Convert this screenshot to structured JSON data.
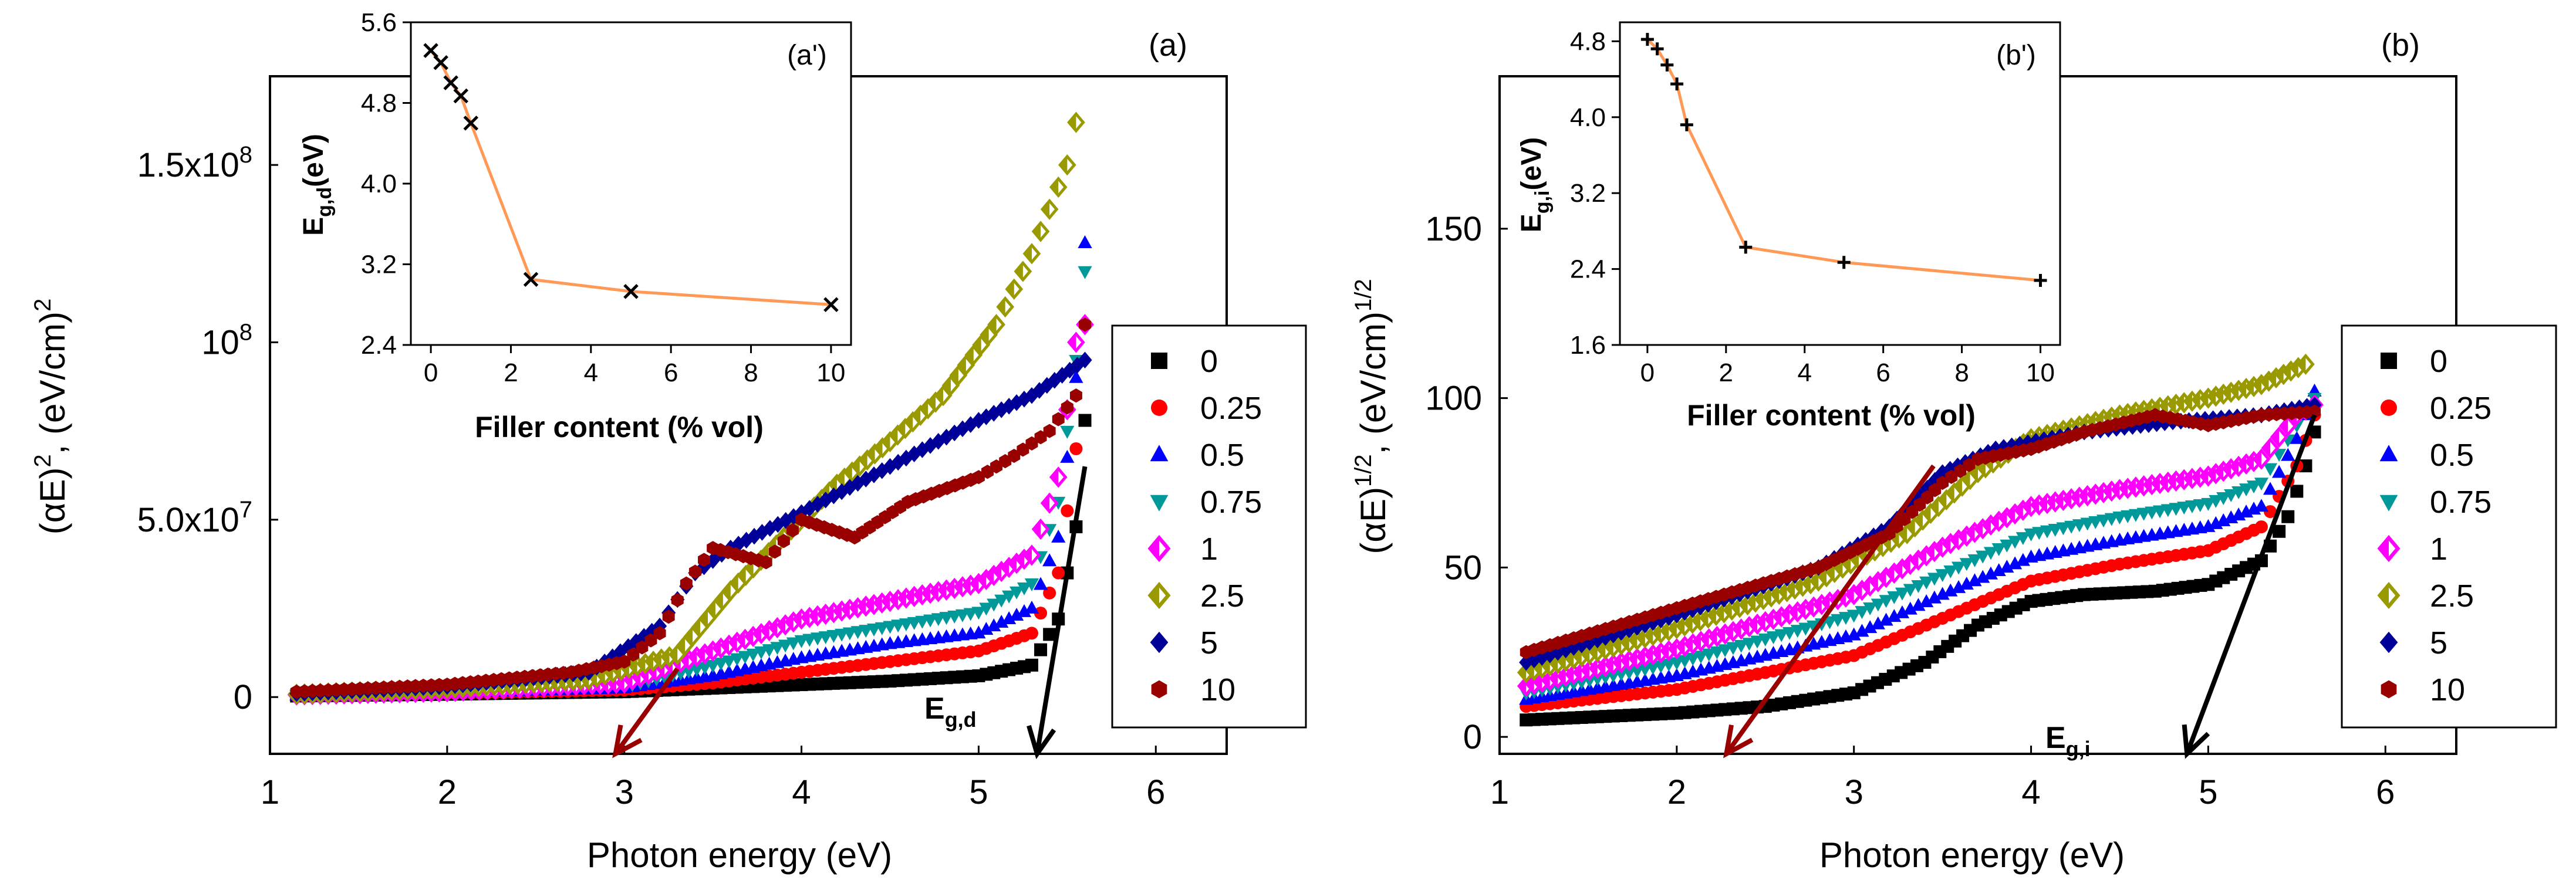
{
  "chart_data": [
    {
      "type": "scatter",
      "panel_label": "(a)",
      "xlabel": "Photon energy (eV)",
      "ylabel": {
        "prefix": "(αE)",
        "sup1": "2",
        "mid": ", (eV/cm)",
        "sup2": "2"
      },
      "xlim": [
        1,
        6.4
      ],
      "ylim": [
        -16000000.0,
        175000000.0
      ],
      "xticks": [
        1,
        2,
        3,
        4,
        5,
        6
      ],
      "xtick_labels": [
        "1",
        "2",
        "3",
        "4",
        "5",
        "6"
      ],
      "yticks": [
        0,
        50000000,
        100000000,
        150000000
      ],
      "ytick_labels": [
        {
          "base": "0",
          "sup": ""
        },
        {
          "base": "5.0x10",
          "sup": "7"
        },
        {
          "base": "10",
          "sup": "8"
        },
        {
          "base": "1.5x10",
          "sup": "8"
        }
      ],
      "annotation": {
        "base": "E",
        "sub": "g,d"
      },
      "series": [
        {
          "name": "0",
          "color": "#000000",
          "marker": "square",
          "points": [
            [
              1.15,
              300000.0
            ],
            [
              2,
              800000.0
            ],
            [
              3,
              1500000.0
            ],
            [
              3.5,
              2500000.0
            ],
            [
              4,
              3500000.0
            ],
            [
              4.5,
              4500000.0
            ],
            [
              5,
              6000000.0
            ],
            [
              5.3,
              9000000.0
            ],
            [
              5.45,
              22000000.0
            ],
            [
              5.55,
              48000000.0
            ],
            [
              5.6,
              78000000.0
            ]
          ]
        },
        {
          "name": "0.25",
          "color": "#ff0000",
          "marker": "circle",
          "points": [
            [
              1.15,
              400000.0
            ],
            [
              2,
              1000000.0
            ],
            [
              3,
              2000000.0
            ],
            [
              3.5,
              4000000.0
            ],
            [
              4,
              7000000.0
            ],
            [
              4.5,
              10000000.0
            ],
            [
              5,
              13000000.0
            ],
            [
              5.3,
              18000000.0
            ],
            [
              5.45,
              35000000.0
            ],
            [
              5.55,
              70000000.0
            ],
            [
              5.6,
              105000000.0
            ]
          ]
        },
        {
          "name": "0.5",
          "color": "#0000ff",
          "marker": "tri-up",
          "points": [
            [
              1.15,
              500000.0
            ],
            [
              2,
              1200000.0
            ],
            [
              3,
              2500000.0
            ],
            [
              3.5,
              6000000.0
            ],
            [
              4,
              11000000.0
            ],
            [
              4.5,
              15000000.0
            ],
            [
              5,
              18000000.0
            ],
            [
              5.3,
              25000000.0
            ],
            [
              5.45,
              45000000.0
            ],
            [
              5.55,
              90000000.0
            ],
            [
              5.6,
              128000000.0
            ]
          ]
        },
        {
          "name": "0.75",
          "color": "#009999",
          "marker": "tri-down",
          "points": [
            [
              1.15,
              500000.0
            ],
            [
              2,
              1300000.0
            ],
            [
              3,
              3000000.0
            ],
            [
              3.5,
              9000000.0
            ],
            [
              4,
              16000000.0
            ],
            [
              4.5,
              20000000.0
            ],
            [
              5,
              24000000.0
            ],
            [
              5.3,
              32000000.0
            ],
            [
              5.45,
              55000000.0
            ],
            [
              5.55,
              95000000.0
            ],
            [
              5.6,
              120000000.0
            ]
          ]
        },
        {
          "name": "1",
          "color": "#ff00ff",
          "marker": "diamond-half",
          "points": [
            [
              1.15,
              600000.0
            ],
            [
              2,
              1500000.0
            ],
            [
              3,
              4000000.0
            ],
            [
              3.5,
              13000000.0
            ],
            [
              4,
              22000000.0
            ],
            [
              4.5,
              27000000.0
            ],
            [
              5,
              32000000.0
            ],
            [
              5.3,
              40000000.0
            ],
            [
              5.45,
              62000000.0
            ],
            [
              5.55,
              100000000.0
            ],
            [
              5.6,
              105000000.0
            ]
          ]
        },
        {
          "name": "2.5",
          "color": "#999900",
          "marker": "diamond-half",
          "points": [
            [
              1.15,
              800000.0
            ],
            [
              2,
              2500000.0
            ],
            [
              2.8,
              5000000.0
            ],
            [
              3.3,
              12000000.0
            ],
            [
              3.6,
              30000000.0
            ],
            [
              3.9,
              45000000.0
            ],
            [
              4.2,
              60000000.0
            ],
            [
              4.5,
              72000000.0
            ],
            [
              4.8,
              85000000.0
            ],
            [
              5.1,
              105000000.0
            ],
            [
              5.3,
              125000000.0
            ],
            [
              5.5,
              150000000.0
            ],
            [
              5.55,
              162000000.0
            ]
          ]
        },
        {
          "name": "5",
          "color": "#000099",
          "marker": "diamond",
          "points": [
            [
              1.15,
              1000000.0
            ],
            [
              2,
              3000000.0
            ],
            [
              2.8,
              7000000.0
            ],
            [
              3.2,
              20000000.0
            ],
            [
              3.4,
              35000000.0
            ],
            [
              3.6,
              42000000.0
            ],
            [
              4,
              52000000.0
            ],
            [
              4.5,
              65000000.0
            ],
            [
              5,
              78000000.0
            ],
            [
              5.3,
              85000000.0
            ],
            [
              5.6,
              95000000.0
            ]
          ]
        },
        {
          "name": "10",
          "color": "#990000",
          "marker": "hexagon",
          "points": [
            [
              1.15,
              1500000.0
            ],
            [
              2,
              3500000.0
            ],
            [
              2.7,
              7000000.0
            ],
            [
              3,
              10000000.0
            ],
            [
              3.2,
              18000000.0
            ],
            [
              3.35,
              32000000.0
            ],
            [
              3.5,
              42000000.0
            ],
            [
              3.8,
              38000000.0
            ],
            [
              4,
              50000000.0
            ],
            [
              4.3,
              45000000.0
            ],
            [
              4.6,
              55000000.0
            ],
            [
              5,
              62000000.0
            ],
            [
              5.2,
              68000000.0
            ],
            [
              5.4,
              75000000.0
            ],
            [
              5.55,
              85000000.0
            ],
            [
              5.6,
              105000000.0
            ]
          ]
        }
      ],
      "arrows": [
        {
          "color": "#990000",
          "from": [
            3.3,
            8000000.0
          ],
          "to": [
            2.95,
            -16000000.0
          ]
        },
        {
          "color": "#000000",
          "from": [
            5.6,
            65000000.0
          ],
          "to": [
            5.33,
            -16000000.0
          ]
        }
      ],
      "inset": {
        "panel_label": "(a')",
        "xlabel": "Filler content (% vol)",
        "ylabel": {
          "base": "E",
          "sub": "g,d",
          "tail": "(eV)"
        },
        "xlim": [
          -0.5,
          10.5
        ],
        "ylim": [
          2.4,
          5.6
        ],
        "xticks": [
          0,
          2,
          4,
          6,
          8,
          10
        ],
        "xtick_labels": [
          "0",
          "2",
          "4",
          "6",
          "8",
          "10"
        ],
        "yticks": [
          2.4,
          3.2,
          4.0,
          4.8,
          5.6
        ],
        "ytick_labels": [
          "2.4",
          "3.2",
          "4.0",
          "4.8",
          "5.6"
        ],
        "marker": "x",
        "line_color": "#ff9955",
        "x": [
          0,
          0.25,
          0.5,
          0.75,
          1,
          2.5,
          5,
          10
        ],
        "y": [
          5.32,
          5.2,
          5.0,
          4.87,
          4.6,
          3.05,
          2.93,
          2.8
        ]
      }
    },
    {
      "type": "scatter",
      "panel_label": "(b)",
      "xlabel": "Photon energy (eV)",
      "ylabel": {
        "prefix": "(αE)",
        "sup1": "1/2",
        "mid": ", (eV/cm)",
        "sup2": "1/2"
      },
      "xlim": [
        1,
        6.4
      ],
      "ylim": [
        -5,
        195
      ],
      "xticks": [
        1,
        2,
        3,
        4,
        5,
        6
      ],
      "xtick_labels": [
        "1",
        "2",
        "3",
        "4",
        "5",
        "6"
      ],
      "yticks": [
        0,
        50,
        100,
        150
      ],
      "ytick_labels": [
        {
          "base": "0",
          "sup": ""
        },
        {
          "base": "50",
          "sup": ""
        },
        {
          "base": "100",
          "sup": ""
        },
        {
          "base": "150",
          "sup": ""
        }
      ],
      "annotation": {
        "base": "E",
        "sub": "g,i"
      },
      "series": [
        {
          "name": "0",
          "color": "#000000",
          "marker": "square",
          "points": [
            [
              1.15,
              5
            ],
            [
              2,
              7
            ],
            [
              2.5,
              9
            ],
            [
              3,
              13
            ],
            [
              3.4,
              22
            ],
            [
              3.7,
              33
            ],
            [
              4,
              40
            ],
            [
              4.3,
              42
            ],
            [
              4.7,
              43
            ],
            [
              5,
              45
            ],
            [
              5.3,
              52
            ],
            [
              5.45,
              65
            ],
            [
              5.55,
              80
            ],
            [
              5.6,
              90
            ]
          ]
        },
        {
          "name": "0.25",
          "color": "#ff0000",
          "marker": "circle",
          "points": [
            [
              1.15,
              9
            ],
            [
              2,
              14
            ],
            [
              3,
              24
            ],
            [
              3.5,
              35
            ],
            [
              4,
              46
            ],
            [
              4.5,
              51
            ],
            [
              5,
              55
            ],
            [
              5.3,
              62
            ],
            [
              5.5,
              80
            ],
            [
              5.6,
              95
            ]
          ]
        },
        {
          "name": "0.5",
          "color": "#0000ff",
          "marker": "tri-up",
          "points": [
            [
              1.15,
              11
            ],
            [
              2,
              18
            ],
            [
              3,
              30
            ],
            [
              3.5,
              42
            ],
            [
              4,
              53
            ],
            [
              4.5,
              58
            ],
            [
              5,
              62
            ],
            [
              5.3,
              68
            ],
            [
              5.5,
              88
            ],
            [
              5.6,
              102
            ]
          ]
        },
        {
          "name": "0.75",
          "color": "#009999",
          "marker": "tri-down",
          "points": [
            [
              1.15,
              13
            ],
            [
              2,
              22
            ],
            [
              3,
              36
            ],
            [
              3.5,
              48
            ],
            [
              4,
              60
            ],
            [
              4.5,
              65
            ],
            [
              5,
              69
            ],
            [
              5.3,
              75
            ],
            [
              5.5,
              92
            ],
            [
              5.6,
              100
            ]
          ]
        },
        {
          "name": "1",
          "color": "#ff00ff",
          "marker": "diamond-half",
          "points": [
            [
              1.15,
              15
            ],
            [
              2,
              26
            ],
            [
              3,
              42
            ],
            [
              3.5,
              56
            ],
            [
              4,
              68
            ],
            [
              4.5,
              73
            ],
            [
              5,
              77
            ],
            [
              5.3,
              82
            ],
            [
              5.5,
              95
            ],
            [
              5.6,
              98
            ]
          ]
        },
        {
          "name": "2.5",
          "color": "#999900",
          "marker": "diamond-half",
          "points": [
            [
              1.15,
              19
            ],
            [
              2,
              32
            ],
            [
              2.8,
              46
            ],
            [
              3.3,
              60
            ],
            [
              3.7,
              78
            ],
            [
              4,
              88
            ],
            [
              4.5,
              95
            ],
            [
              5,
              100
            ],
            [
              5.3,
              104
            ],
            [
              5.55,
              110
            ]
          ]
        },
        {
          "name": "5",
          "color": "#000099",
          "marker": "diamond",
          "points": [
            [
              1.15,
              22
            ],
            [
              2,
              36
            ],
            [
              2.8,
              50
            ],
            [
              3.2,
              62
            ],
            [
              3.5,
              78
            ],
            [
              3.8,
              85
            ],
            [
              4.3,
              90
            ],
            [
              4.8,
              93
            ],
            [
              5.3,
              95
            ],
            [
              5.6,
              98
            ]
          ]
        },
        {
          "name": "10",
          "color": "#990000",
          "marker": "hexagon",
          "points": [
            [
              1.15,
              25
            ],
            [
              2,
              38
            ],
            [
              2.8,
              50
            ],
            [
              3.2,
              60
            ],
            [
              3.5,
              75
            ],
            [
              3.7,
              82
            ],
            [
              4,
              85
            ],
            [
              4.3,
              90
            ],
            [
              4.7,
              95
            ],
            [
              5,
              92
            ],
            [
              5.3,
              95
            ],
            [
              5.6,
              96
            ]
          ]
        }
      ],
      "arrows": [
        {
          "color": "#990000",
          "from": [
            3.45,
            80
          ],
          "to": [
            2.28,
            -5
          ]
        },
        {
          "color": "#000000",
          "from": [
            5.6,
            95
          ],
          "to": [
            4.88,
            -5
          ]
        }
      ],
      "inset": {
        "panel_label": "(b')",
        "xlabel": "Filler content (% vol)",
        "ylabel": {
          "base": "E",
          "sub": "g,i",
          "tail": "(eV)"
        },
        "xlim": [
          -0.7,
          10.5
        ],
        "ylim": [
          1.6,
          5.0
        ],
        "xticks": [
          0,
          2,
          4,
          6,
          8,
          10
        ],
        "xtick_labels": [
          "0",
          "2",
          "4",
          "6",
          "8",
          "10"
        ],
        "yticks": [
          1.6,
          2.4,
          3.2,
          4.0,
          4.8
        ],
        "ytick_labels": [
          "1.6",
          "2.4",
          "3.2",
          "4.0",
          "4.8"
        ],
        "marker": "plus",
        "line_color": "#ff9955",
        "x": [
          0,
          0.25,
          0.5,
          0.75,
          1,
          2.5,
          5,
          10
        ],
        "y": [
          4.82,
          4.72,
          4.55,
          4.35,
          3.92,
          2.63,
          2.47,
          2.28
        ]
      }
    }
  ]
}
